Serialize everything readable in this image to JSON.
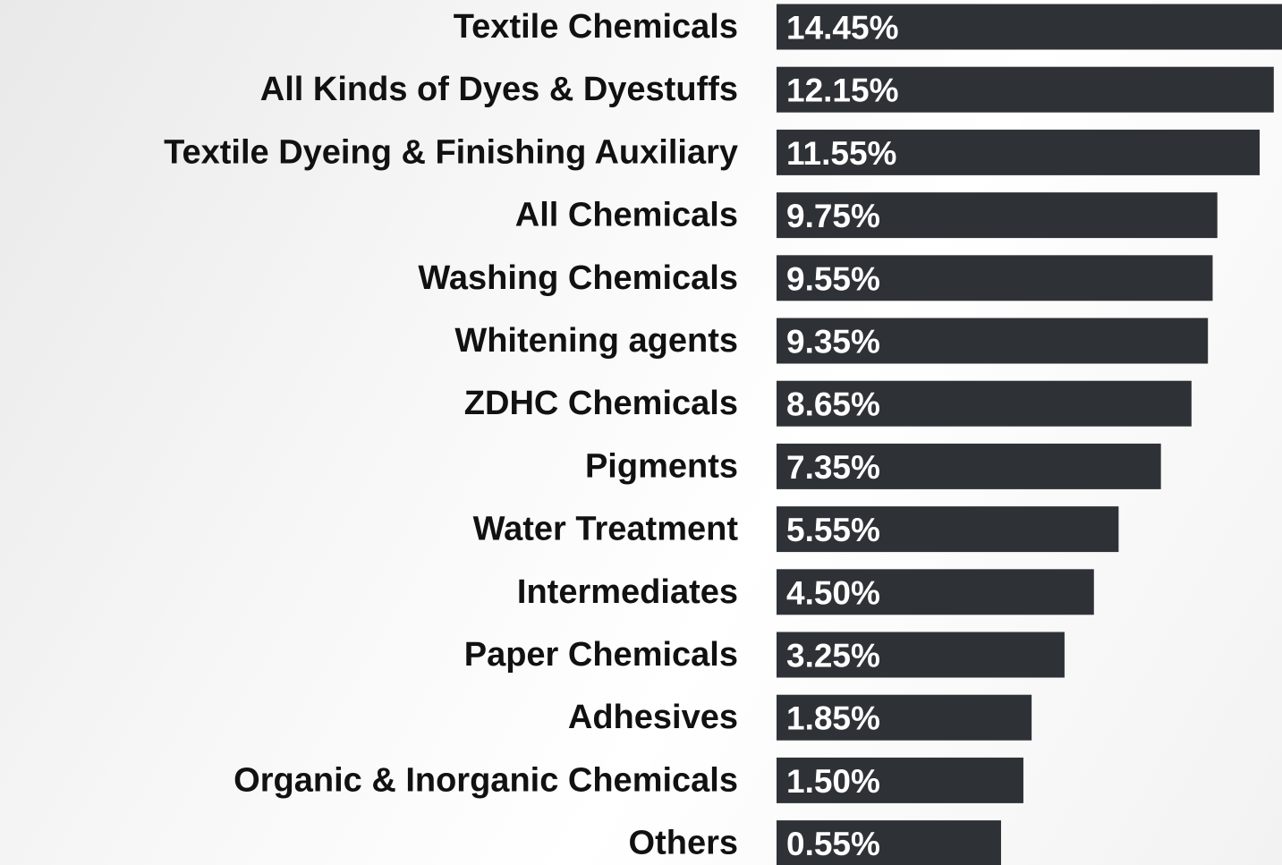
{
  "chart_data": {
    "type": "bar",
    "orientation": "horizontal",
    "categories": [
      "Textile Chemicals",
      "All Kinds of Dyes & Dyestuffs",
      "Textile Dyeing & Finishing Auxiliary",
      "All Chemicals",
      "Washing Chemicals",
      "Whitening agents",
      "ZDHC Chemicals",
      "Pigments",
      "Water Treatment",
      "Intermediates",
      "Paper Chemicals",
      "Adhesives",
      "Organic & Inorganic Chemicals",
      "Others"
    ],
    "values": [
      14.45,
      12.15,
      11.55,
      9.75,
      9.55,
      9.35,
      8.65,
      7.35,
      5.55,
      4.5,
      3.25,
      1.85,
      1.5,
      0.55
    ],
    "value_labels": [
      "14.45%",
      "12.15%",
      "11.55%",
      "9.75%",
      "9.55%",
      "9.35%",
      "8.65%",
      "7.35%",
      "5.55%",
      "4.50%",
      "3.25%",
      "1.85%",
      "1.50%",
      "0.55%"
    ],
    "color": "#2e3236",
    "xlim": [
      -9,
      12.5
    ]
  }
}
